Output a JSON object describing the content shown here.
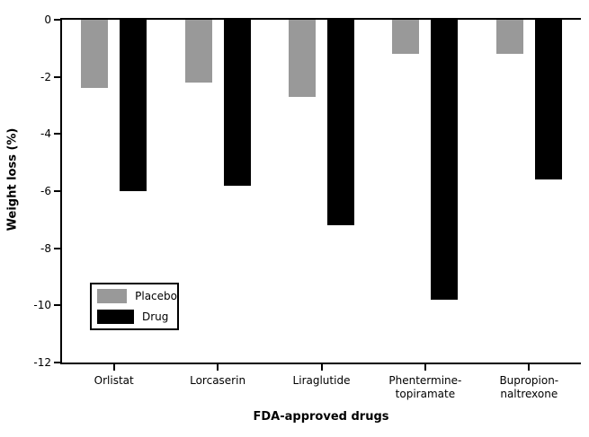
{
  "chart_data": {
    "type": "bar",
    "title": "",
    "xlabel": "FDA-approved drugs",
    "ylabel": "Weight loss (%)",
    "ylim": [
      0,
      -12
    ],
    "yticks": [
      0,
      -2,
      -4,
      -6,
      -8,
      -10,
      -12
    ],
    "grid": false,
    "legend_position": "lower-left",
    "background_color": "#ffffff",
    "axis_color": "#000000",
    "categories": [
      {
        "label": "Orlistat",
        "lines": [
          "Orlistat"
        ]
      },
      {
        "label": "Lorcaserin",
        "lines": [
          "Lorcaserin"
        ]
      },
      {
        "label": "Liraglutide",
        "lines": [
          "Liraglutide"
        ]
      },
      {
        "label": "Phentermine-topiramate",
        "lines": [
          "Phentermine-",
          "topiramate"
        ]
      },
      {
        "label": "Bupropion-naltrexone",
        "lines": [
          "Bupropion-",
          "naltrexone"
        ]
      }
    ],
    "series": [
      {
        "name": "Placebo",
        "color": "#999999",
        "values": [
          -2.4,
          -2.2,
          -2.7,
          -1.2,
          -1.2
        ]
      },
      {
        "name": "Drug",
        "color": "#000000",
        "values": [
          -6.0,
          -5.8,
          -7.2,
          -9.8,
          -5.6
        ]
      }
    ]
  }
}
